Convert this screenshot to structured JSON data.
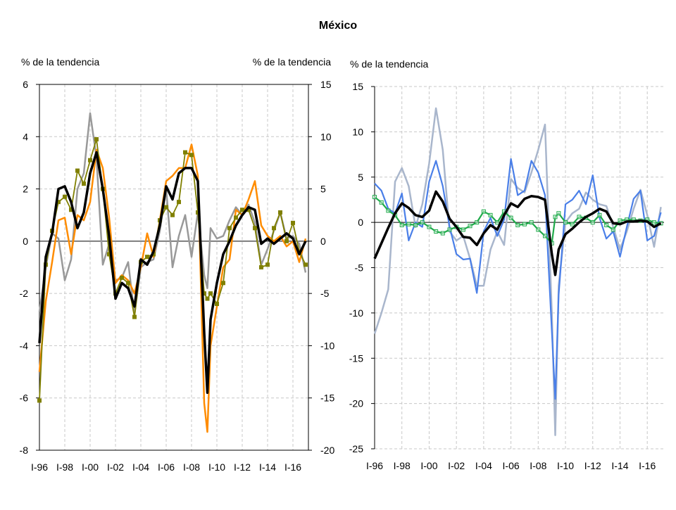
{
  "title": "México",
  "chart_data": [
    {
      "type": "line",
      "panel": "left",
      "ylabel_left": "% de la tendencia",
      "ylabel_right": "% de la tendencia",
      "ylim_left": [
        -8,
        6
      ],
      "yticks_left": [
        "6",
        "4",
        "2",
        "0",
        "-2",
        "-4",
        "-6",
        "-8"
      ],
      "ylim_right": [
        -20,
        15
      ],
      "yticks_right": [
        "15",
        "10",
        "5",
        "0",
        "-5",
        "-10",
        "-15",
        "-20"
      ],
      "xticks": [
        "I-96",
        "I-98",
        "I-00",
        "I-02",
        "I-04",
        "I-06",
        "I-08",
        "I-10",
        "I-12",
        "I-14",
        "I-16"
      ],
      "grid": true,
      "x": [
        "I-96",
        "III-96",
        "I-97",
        "III-97",
        "I-98",
        "III-98",
        "I-99",
        "III-99",
        "I-00",
        "III-00",
        "I-01",
        "III-01",
        "I-02",
        "III-02",
        "I-03",
        "III-03",
        "I-04",
        "III-04",
        "I-05",
        "III-05",
        "I-06",
        "III-06",
        "I-07",
        "III-07",
        "I-08",
        "III-08",
        "I-09",
        "II-09",
        "III-09",
        "I-10",
        "III-10",
        "I-11",
        "III-11",
        "I-12",
        "III-12",
        "I-13",
        "III-13",
        "I-14",
        "III-14",
        "I-15",
        "III-15",
        "I-16",
        "III-16",
        "I-17"
      ],
      "series": [
        {
          "color": "#999999",
          "axis": "left",
          "marker": "none",
          "width": 2.5,
          "values": [
            -2.7,
            -1.0,
            0.3,
            0.1,
            -1.5,
            -0.7,
            2.0,
            2.6,
            4.9,
            3.2,
            -0.9,
            -0.1,
            -1.5,
            -1.4,
            -0.8,
            -2.8,
            -1.0,
            -0.8,
            -0.7,
            0.4,
            2.0,
            -1.0,
            0.2,
            1.0,
            -0.6,
            1.1,
            -1.3,
            -1.8,
            0.5,
            0.1,
            0.2,
            0.8,
            1.3,
            1.0,
            1.4,
            0.7,
            -0.9,
            -0.3,
            0.4,
            1.1,
            0.1,
            0.2,
            -0.1,
            -1.2
          ]
        },
        {
          "color": "#ff8c00",
          "axis": "left",
          "marker": "none",
          "width": 2.5,
          "values": [
            -5.0,
            -2.3,
            -0.8,
            0.8,
            0.9,
            -0.5,
            1.0,
            0.8,
            1.5,
            3.5,
            2.8,
            0.9,
            -1.6,
            -1.3,
            -1.5,
            -2.0,
            -1.0,
            0.3,
            -0.6,
            0.8,
            2.3,
            2.5,
            2.8,
            2.8,
            3.7,
            2.5,
            -6.2,
            -7.3,
            -4.0,
            -2.5,
            -1.0,
            -0.7,
            1.2,
            1.0,
            1.6,
            2.3,
            0.6,
            0.2,
            0.0,
            0.2,
            -0.2,
            0.0,
            -0.8,
            0.1
          ]
        },
        {
          "color": "#808000",
          "axis": "left",
          "marker": "square",
          "width": 1.8,
          "values": [
            -6.1,
            -0.9,
            0.4,
            1.5,
            1.7,
            1.2,
            2.7,
            2.2,
            3.1,
            3.9,
            2.0,
            -0.5,
            -2.0,
            -1.4,
            -1.6,
            -2.9,
            -0.8,
            -0.6,
            -0.5,
            0.8,
            1.3,
            1.0,
            1.5,
            3.4,
            3.3,
            1.1,
            -2.0,
            -2.2,
            -2.0,
            -2.4,
            -1.6,
            0.5,
            0.9,
            1.2,
            1.2,
            0.5,
            -1.0,
            -0.9,
            0.5,
            1.1,
            0.0,
            0.7,
            -0.4,
            -0.9
          ]
        },
        {
          "color": "#000000",
          "axis": "left",
          "marker": "none",
          "width": 3.5,
          "values": [
            -3.9,
            -0.6,
            0.3,
            2.0,
            2.1,
            1.5,
            0.5,
            1.1,
            2.6,
            3.4,
            2.0,
            0.2,
            -2.2,
            -1.6,
            -1.8,
            -2.5,
            -0.7,
            -0.9,
            -0.4,
            0.6,
            2.1,
            1.6,
            2.6,
            2.8,
            2.8,
            2.3,
            -3.5,
            -5.8,
            -3.0,
            -1.6,
            -0.5,
            0.0,
            0.6,
            1.0,
            1.3,
            1.2,
            -0.1,
            0.1,
            -0.1,
            0.1,
            0.3,
            0.1,
            -0.5,
            0.0
          ]
        }
      ]
    },
    {
      "type": "line",
      "panel": "right",
      "ylabel_left": "% de la tendencia",
      "ylim_left": [
        -25,
        15
      ],
      "yticks_left": [
        "15",
        "10",
        "5",
        "0",
        "-5",
        "-10",
        "-15",
        "-20",
        "-25"
      ],
      "xticks": [
        "I-96",
        "I-98",
        "I-00",
        "I-02",
        "I-04",
        "I-06",
        "I-08",
        "I-10",
        "I-12",
        "I-14",
        "I-16"
      ],
      "grid": true,
      "x": [
        "I-96",
        "III-96",
        "I-97",
        "III-97",
        "I-98",
        "III-98",
        "I-99",
        "III-99",
        "I-00",
        "III-00",
        "I-01",
        "III-01",
        "I-02",
        "III-02",
        "I-03",
        "III-03",
        "I-04",
        "III-04",
        "I-05",
        "III-05",
        "I-06",
        "III-06",
        "I-07",
        "III-07",
        "I-08",
        "III-08",
        "I-09",
        "II-09",
        "III-09",
        "I-10",
        "III-10",
        "I-11",
        "III-11",
        "I-12",
        "III-12",
        "I-13",
        "III-13",
        "I-14",
        "III-14",
        "I-15",
        "III-15",
        "I-16",
        "III-16",
        "I-17"
      ],
      "series": [
        {
          "color": "#a9b6cc",
          "axis": "left",
          "marker": "none",
          "width": 2.5,
          "values": [
            -12.3,
            -10.0,
            -7.4,
            4.5,
            6.0,
            4.0,
            -0.5,
            2.0,
            6.5,
            12.6,
            8.0,
            -1.0,
            -2.0,
            -1.5,
            -4.0,
            -7.0,
            -7.0,
            -3.0,
            -1.0,
            -2.5,
            4.8,
            3.8,
            3.3,
            5.5,
            8.0,
            10.8,
            -10.0,
            -23.5,
            -7.0,
            0.0,
            1.0,
            1.5,
            3.3,
            2.5,
            2.0,
            1.8,
            -0.5,
            -3.0,
            -1.0,
            1.5,
            3.6,
            0.8,
            -2.7,
            1.7
          ]
        },
        {
          "color": "#4a7fe8",
          "axis": "left",
          "marker": "none",
          "width": 2.2,
          "values": [
            4.3,
            3.5,
            1.5,
            1.0,
            3.2,
            -2.0,
            0.0,
            -0.5,
            4.5,
            6.8,
            4.0,
            -0.5,
            -3.5,
            -4.1,
            -4.0,
            -7.8,
            -1.0,
            0.5,
            -1.5,
            0.3,
            7.0,
            3.0,
            3.5,
            6.8,
            5.5,
            3.0,
            -12.0,
            -19.5,
            -8.0,
            2.0,
            2.5,
            3.5,
            2.0,
            5.2,
            0.5,
            -1.8,
            -1.0,
            -3.8,
            -0.5,
            2.6,
            3.5,
            -2.0,
            -1.5,
            1.1
          ]
        },
        {
          "color": "#1faa4a",
          "axis": "left",
          "marker": "hollow-square",
          "width": 2.2,
          "values": [
            2.8,
            2.2,
            1.3,
            0.8,
            -0.3,
            -0.2,
            -0.3,
            0.0,
            -0.5,
            -1.0,
            -1.2,
            -0.8,
            -0.5,
            -0.8,
            -0.4,
            0.0,
            1.2,
            0.8,
            0.0,
            1.2,
            0.5,
            -0.3,
            -0.2,
            0.0,
            -0.8,
            -1.5,
            -2.3,
            0.6,
            1.0,
            0.0,
            -0.2,
            0.6,
            0.5,
            0.0,
            0.8,
            -0.3,
            -0.8,
            0.2,
            0.3,
            0.3,
            0.2,
            0.3,
            0.0,
            -0.1
          ]
        },
        {
          "color": "#000000",
          "axis": "left",
          "marker": "none",
          "width": 3.5,
          "values": [
            -4.0,
            -2.3,
            -0.6,
            1.0,
            2.1,
            1.6,
            0.8,
            0.6,
            1.3,
            3.4,
            2.3,
            0.4,
            -0.5,
            -1.6,
            -1.7,
            -2.5,
            -1.2,
            -0.3,
            -0.8,
            0.8,
            2.1,
            1.7,
            2.6,
            2.9,
            2.8,
            2.5,
            -3.5,
            -5.8,
            -3.0,
            -1.3,
            -0.7,
            0.0,
            0.6,
            1.0,
            1.5,
            1.2,
            -0.1,
            -0.2,
            0.1,
            0.1,
            0.2,
            0.1,
            -0.5,
            -0.1
          ]
        }
      ]
    }
  ]
}
